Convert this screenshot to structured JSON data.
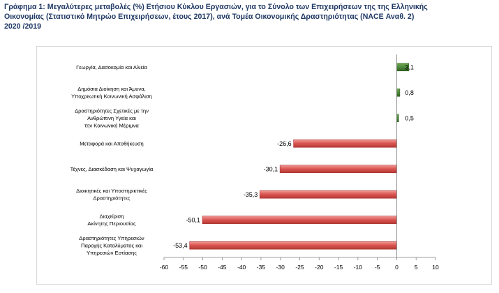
{
  "title_lines": [
    "Γράφημα 1: Μεγαλύτερες μεταβολές (%) Ετήσιου Κύκλου Εργασιών, για το Σύνολο των Επιχειρήσεων της της Ελληνικής",
    "Οικονομίας (Στατιστικό Μητρώο Επιχειρήσεων, έτους 2017), ανά Τομέα Οικονομικής Δραστηριότητας (NACE Αναθ. 2)",
    "2020 /2019"
  ],
  "chart_data": {
    "type": "bar",
    "orientation": "horizontal",
    "title": "Γράφημα 1: Μεγαλύτερες μεταβολές (%) Ετήσιου Κύκλου Εργασιών, για το Σύνολο των Επιχειρήσεων της της Ελληνικής Οικονομίας (Στατιστικό Μητρώο Επιχειρήσεων, έτους 2017), ανά Τομέα Οικονομικής Δραστηριότητας (NACE Αναθ. 2) 2020 /2019",
    "categories": [
      [
        "Γεωργία, Δασοκομία και Αλιεία"
      ],
      [
        "Δημόσια Διοίκηση και Άμυνα,",
        "Υποχρεωτική Κοινωνική Ασφάλιση"
      ],
      [
        "Δραστηριότητες Σχετικές με την",
        "Ανθρώπινη Υγεία και",
        "την Κοινωνική Μέριμνα"
      ],
      [
        "Μεταφορά και Αποθήκευση"
      ],
      [
        "Τέχνες, Διασκέδαση και Ψυχαγωγία"
      ],
      [
        "Διοικητικές και Υποστηρικτικές",
        "Δραστηριότητες"
      ],
      [
        "Διαχείριση",
        "Ακίνητης Περιουσίας"
      ],
      [
        "Δραστηριότητες Υπηρεσιών",
        "Παροχής Καταλύματος και",
        "Υπηρεσιών Εστίασης"
      ]
    ],
    "values": [
      3.1,
      0.8,
      0.5,
      -26.6,
      -30.1,
      -35.3,
      -50.1,
      -53.4
    ],
    "value_labels": [
      "3,1",
      "0,8",
      "0,5",
      "-26,6",
      "-30,1",
      "-35,3",
      "-50,1",
      "-53,4"
    ],
    "xlim": [
      -60,
      10
    ],
    "xticks": [
      -60,
      -55,
      -50,
      -45,
      -40,
      -35,
      -30,
      -25,
      -20,
      -15,
      -10,
      -5,
      0,
      5,
      10
    ],
    "grid": false,
    "legend": "none",
    "colors": {
      "positive": "#4e8a3c",
      "negative": "#d9534f",
      "title": "#1f3864"
    }
  }
}
